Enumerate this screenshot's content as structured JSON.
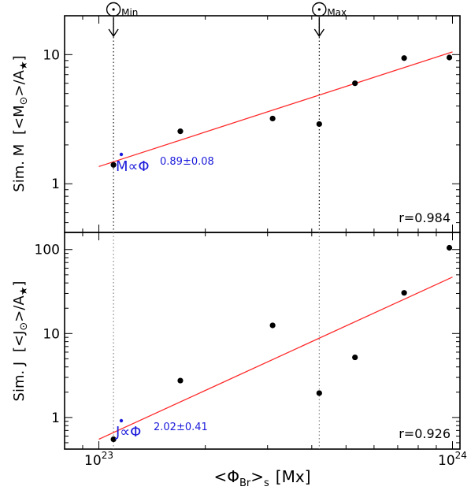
{
  "chart_data": [
    {
      "type": "scatter",
      "panel": "top",
      "ylabel_prefix": "Sim. M",
      "ylabel_inner": "[<M",
      "ylabel_sun": "⊙",
      "ylabel_tail": ">/A",
      "ylabel_star": "★",
      "ylabel_close": "]",
      "yscale": "log",
      "ylim": [
        0.42,
        20
      ],
      "yticks": [
        {
          "v": 1,
          "label": "1"
        },
        {
          "v": 10,
          "label": "10"
        }
      ],
      "points": [
        {
          "x": 1.1e+23,
          "y": 1.4
        },
        {
          "x": 1.7e+23,
          "y": 2.55
        },
        {
          "x": 3.1e+23,
          "y": 3.2
        },
        {
          "x": 4.2e+23,
          "y": 2.9
        },
        {
          "x": 5.3e+23,
          "y": 6.0
        },
        {
          "x": 7.3e+23,
          "y": 9.4
        },
        {
          "x": 9.8e+23,
          "y": 9.5
        }
      ],
      "fit": {
        "color": "#ff2a2a",
        "x": [
          1e+23,
          1e+24
        ],
        "y": [
          1.36,
          10.5
        ]
      },
      "fit_label": {
        "base": "M∝Φ",
        "exponent": "0.89±0.08"
      },
      "r_label": "r=0.984",
      "markers": [
        {
          "label": "⊙",
          "sub": "Min",
          "x": 1.1e+23
        },
        {
          "label": "⊙",
          "sub": "Max",
          "x": 4.2e+23
        }
      ]
    },
    {
      "type": "scatter",
      "panel": "bottom",
      "ylabel_prefix": "Sim. J",
      "ylabel_inner": "[<J",
      "ylabel_sun": "⊙",
      "ylabel_tail": ">/A",
      "ylabel_star": "★",
      "ylabel_close": "]",
      "yscale": "log",
      "ylim": [
        0.42,
        160
      ],
      "yticks": [
        {
          "v": 1,
          "label": "1"
        },
        {
          "v": 10,
          "label": "10"
        },
        {
          "v": 100,
          "label": "100"
        }
      ],
      "points": [
        {
          "x": 1.1e+23,
          "y": 0.55
        },
        {
          "x": 1.7e+23,
          "y": 2.75
        },
        {
          "x": 3.1e+23,
          "y": 12.5
        },
        {
          "x": 4.2e+23,
          "y": 1.95
        },
        {
          "x": 5.3e+23,
          "y": 5.2
        },
        {
          "x": 7.3e+23,
          "y": 30.5
        },
        {
          "x": 9.8e+23,
          "y": 105
        }
      ],
      "fit": {
        "color": "#ff2a2a",
        "x": [
          1e+23,
          1e+24
        ],
        "y": [
          0.55,
          47
        ]
      },
      "fit_label": {
        "base": "J∝Φ",
        "exponent": "2.02±0.41"
      },
      "r_label": "r=0.926"
    }
  ],
  "x_axis": {
    "scale": "log",
    "xlim": [
      8e+22,
      1.05e+24
    ],
    "ticks": [
      {
        "v": 1e+23,
        "base": "10",
        "exp": "23"
      },
      {
        "v": 1e+24,
        "base": "10",
        "exp": "24"
      }
    ],
    "label_open": "<Φ",
    "label_sub": "Br",
    "label_close": ">",
    "label_sub2": "s",
    "label_unit": "[Mx]"
  },
  "colors": {
    "fit": "#ff2a2a",
    "annotation": "#1a1adb",
    "points": "#000000"
  }
}
